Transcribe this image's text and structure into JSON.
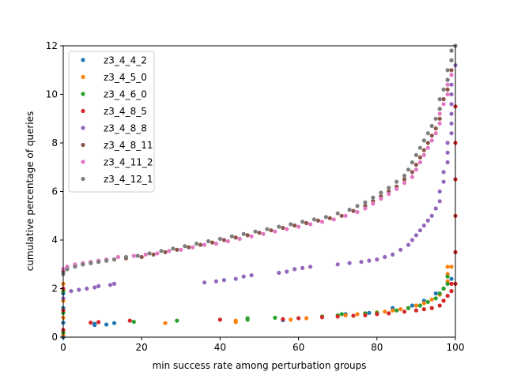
{
  "chart_data": {
    "type": "scatter",
    "xlabel": "min success rate among perturbation groups",
    "ylabel": "cumulative percentage of queries",
    "xlim": [
      0,
      100
    ],
    "ylim": [
      0,
      12
    ],
    "xticks": [
      0,
      20,
      40,
      60,
      80,
      100
    ],
    "yticks": [
      0,
      2,
      4,
      6,
      8,
      10,
      12
    ],
    "grid": false,
    "legend_position": "top-left",
    "series": [
      {
        "name": "z3_4_4_2",
        "color": "#1f77b4",
        "points": [
          [
            0,
            0.0
          ],
          [
            0,
            0.6
          ],
          [
            0,
            1.2
          ],
          [
            0,
            1.8
          ],
          [
            8,
            0.5
          ],
          [
            8,
            0.55
          ],
          [
            11,
            0.52
          ],
          [
            13,
            0.58
          ],
          [
            56,
            0.7
          ],
          [
            72,
            0.95
          ],
          [
            78,
            1.0
          ],
          [
            84,
            1.2
          ],
          [
            89,
            1.3
          ],
          [
            92,
            1.5
          ],
          [
            95,
            1.8
          ],
          [
            97,
            2.0
          ],
          [
            98,
            2.2
          ],
          [
            99,
            2.4
          ]
        ]
      },
      {
        "name": "z3_4_5_0",
        "color": "#ff7f0e",
        "points": [
          [
            0,
            0.1
          ],
          [
            0,
            0.8
          ],
          [
            0,
            1.5
          ],
          [
            0,
            2.2
          ],
          [
            26,
            0.58
          ],
          [
            44,
            0.62
          ],
          [
            44,
            0.68
          ],
          [
            58,
            0.72
          ],
          [
            62,
            0.78
          ],
          [
            72,
            0.9
          ],
          [
            75,
            0.95
          ],
          [
            77,
            0.98
          ],
          [
            80,
            1.02
          ],
          [
            82,
            1.05
          ],
          [
            84,
            1.1
          ],
          [
            86,
            1.15
          ],
          [
            88,
            1.2
          ],
          [
            90,
            1.3
          ],
          [
            92,
            1.4
          ],
          [
            94,
            1.55
          ],
          [
            96,
            1.75
          ],
          [
            97,
            2.0
          ],
          [
            98,
            2.3
          ],
          [
            98,
            2.6
          ],
          [
            98,
            2.9
          ],
          [
            99,
            2.9
          ]
        ]
      },
      {
        "name": "z3_4_6_0",
        "color": "#2ca02c",
        "points": [
          [
            0,
            0.2
          ],
          [
            0,
            1.0
          ],
          [
            0,
            1.9
          ],
          [
            18,
            0.63
          ],
          [
            29,
            0.68
          ],
          [
            47,
            0.72
          ],
          [
            47,
            0.78
          ],
          [
            54,
            0.8
          ],
          [
            66,
            0.85
          ],
          [
            70,
            0.9
          ],
          [
            71,
            0.95
          ],
          [
            77,
            0.98
          ],
          [
            80,
            1.0
          ],
          [
            85,
            1.1
          ],
          [
            88,
            1.2
          ],
          [
            91,
            1.3
          ],
          [
            93,
            1.45
          ],
          [
            95,
            1.6
          ],
          [
            96,
            1.8
          ],
          [
            97,
            2.0
          ],
          [
            98,
            2.2
          ],
          [
            98,
            2.5
          ]
        ]
      },
      {
        "name": "z3_4_8_5",
        "color": "#d62728",
        "points": [
          [
            0,
            0.3
          ],
          [
            0,
            1.1
          ],
          [
            0,
            2.0
          ],
          [
            7,
            0.6
          ],
          [
            9,
            0.62
          ],
          [
            17,
            0.68
          ],
          [
            40,
            0.72
          ],
          [
            56,
            0.74
          ],
          [
            60,
            0.78
          ],
          [
            66,
            0.82
          ],
          [
            70,
            0.85
          ],
          [
            74,
            0.88
          ],
          [
            77,
            0.9
          ],
          [
            80,
            0.95
          ],
          [
            83,
            0.98
          ],
          [
            87,
            1.05
          ],
          [
            90,
            1.1
          ],
          [
            92,
            1.15
          ],
          [
            94,
            1.2
          ],
          [
            96,
            1.3
          ],
          [
            97,
            1.5
          ],
          [
            98,
            1.7
          ],
          [
            99,
            1.9
          ],
          [
            99,
            2.2
          ],
          [
            100,
            2.2
          ],
          [
            100,
            3.5
          ],
          [
            100,
            5.0
          ],
          [
            100,
            6.5
          ],
          [
            100,
            8.0
          ],
          [
            100,
            9.5
          ]
        ]
      },
      {
        "name": "z3_4_8_8",
        "color": "#9467bd",
        "points": [
          [
            0,
            1.6
          ],
          [
            2,
            1.9
          ],
          [
            4,
            1.95
          ],
          [
            6,
            2.0
          ],
          [
            8,
            2.05
          ],
          [
            9,
            2.1
          ],
          [
            12,
            2.15
          ],
          [
            13,
            2.2
          ],
          [
            36,
            2.25
          ],
          [
            39,
            2.3
          ],
          [
            41,
            2.35
          ],
          [
            44,
            2.4
          ],
          [
            46,
            2.5
          ],
          [
            48,
            2.55
          ],
          [
            55,
            2.65
          ],
          [
            57,
            2.7
          ],
          [
            59,
            2.8
          ],
          [
            61,
            2.85
          ],
          [
            63,
            2.9
          ],
          [
            70,
            3.0
          ],
          [
            73,
            3.05
          ],
          [
            76,
            3.1
          ],
          [
            78,
            3.15
          ],
          [
            80,
            3.2
          ],
          [
            82,
            3.3
          ],
          [
            84,
            3.4
          ],
          [
            86,
            3.6
          ],
          [
            88,
            3.8
          ],
          [
            89,
            4.0
          ],
          [
            90,
            4.2
          ],
          [
            91,
            4.4
          ],
          [
            92,
            4.6
          ],
          [
            93,
            4.8
          ],
          [
            94,
            5.0
          ],
          [
            95,
            5.3
          ],
          [
            96,
            5.6
          ],
          [
            96,
            6.0
          ],
          [
            97,
            6.4
          ],
          [
            97,
            6.8
          ],
          [
            98,
            7.2
          ],
          [
            98,
            7.6
          ],
          [
            98,
            8.0
          ],
          [
            99,
            8.4
          ],
          [
            99,
            8.8
          ],
          [
            99,
            9.2
          ],
          [
            99,
            9.6
          ],
          [
            99,
            10.0
          ],
          [
            99,
            10.4
          ],
          [
            99,
            10.8
          ],
          [
            100,
            11.2
          ]
        ]
      },
      {
        "name": "z3_4_8_11",
        "color": "#8c564b",
        "points": [
          [
            0,
            2.7
          ],
          [
            1,
            2.9
          ],
          [
            3,
            2.95
          ],
          [
            5,
            3.0
          ],
          [
            7,
            3.05
          ],
          [
            9,
            3.1
          ],
          [
            11,
            3.15
          ],
          [
            13,
            3.2
          ],
          [
            16,
            3.25
          ],
          [
            20,
            3.3
          ],
          [
            23,
            3.4
          ],
          [
            26,
            3.5
          ],
          [
            29,
            3.6
          ],
          [
            32,
            3.7
          ],
          [
            35,
            3.8
          ],
          [
            38,
            3.9
          ],
          [
            41,
            4.0
          ],
          [
            44,
            4.1
          ],
          [
            47,
            4.2
          ],
          [
            50,
            4.3
          ],
          [
            53,
            4.4
          ],
          [
            56,
            4.5
          ],
          [
            59,
            4.6
          ],
          [
            62,
            4.7
          ],
          [
            65,
            4.8
          ],
          [
            68,
            4.9
          ],
          [
            71,
            5.0
          ],
          [
            74,
            5.2
          ],
          [
            77,
            5.4
          ],
          [
            79,
            5.6
          ],
          [
            81,
            5.8
          ],
          [
            83,
            6.0
          ],
          [
            85,
            6.2
          ],
          [
            87,
            6.5
          ],
          [
            89,
            6.8
          ],
          [
            90,
            7.1
          ],
          [
            91,
            7.4
          ],
          [
            92,
            7.7
          ],
          [
            93,
            8.0
          ],
          [
            94,
            8.3
          ],
          [
            95,
            8.6
          ],
          [
            96,
            9.0
          ],
          [
            96,
            9.4
          ],
          [
            97,
            9.8
          ],
          [
            98,
            10.2
          ],
          [
            98,
            10.6
          ],
          [
            99,
            11.0
          ],
          [
            99,
            11.4
          ],
          [
            99,
            11.8
          ]
        ]
      },
      {
        "name": "z3_4_11_2",
        "color": "#e377c2",
        "points": [
          [
            0,
            2.8
          ],
          [
            1,
            2.9
          ],
          [
            3,
            3.0
          ],
          [
            5,
            3.05
          ],
          [
            7,
            3.1
          ],
          [
            9,
            3.15
          ],
          [
            11,
            3.2
          ],
          [
            14,
            3.3
          ],
          [
            18,
            3.35
          ],
          [
            21,
            3.4
          ],
          [
            24,
            3.45
          ],
          [
            27,
            3.55
          ],
          [
            30,
            3.6
          ],
          [
            33,
            3.7
          ],
          [
            36,
            3.8
          ],
          [
            39,
            3.85
          ],
          [
            42,
            3.95
          ],
          [
            45,
            4.05
          ],
          [
            48,
            4.15
          ],
          [
            51,
            4.25
          ],
          [
            54,
            4.35
          ],
          [
            57,
            4.45
          ],
          [
            60,
            4.55
          ],
          [
            63,
            4.65
          ],
          [
            66,
            4.75
          ],
          [
            69,
            4.85
          ],
          [
            72,
            5.0
          ],
          [
            75,
            5.15
          ],
          [
            77,
            5.3
          ],
          [
            79,
            5.5
          ],
          [
            81,
            5.7
          ],
          [
            83,
            5.9
          ],
          [
            85,
            6.1
          ],
          [
            87,
            6.35
          ],
          [
            89,
            6.6
          ],
          [
            90,
            6.9
          ],
          [
            91,
            7.2
          ],
          [
            92,
            7.5
          ],
          [
            93,
            7.8
          ],
          [
            94,
            8.1
          ],
          [
            95,
            8.4
          ],
          [
            96,
            8.8
          ],
          [
            96,
            9.2
          ],
          [
            97,
            9.6
          ],
          [
            98,
            10.0
          ],
          [
            98,
            10.4
          ],
          [
            99,
            10.8
          ]
        ]
      },
      {
        "name": "z3_4_12_1",
        "color": "#7f7f7f",
        "points": [
          [
            0,
            2.6
          ],
          [
            1,
            2.8
          ],
          [
            3,
            2.9
          ],
          [
            5,
            3.0
          ],
          [
            7,
            3.05
          ],
          [
            9,
            3.1
          ],
          [
            11,
            3.15
          ],
          [
            13,
            3.2
          ],
          [
            16,
            3.3
          ],
          [
            19,
            3.35
          ],
          [
            22,
            3.45
          ],
          [
            25,
            3.55
          ],
          [
            28,
            3.65
          ],
          [
            31,
            3.75
          ],
          [
            34,
            3.85
          ],
          [
            37,
            3.95
          ],
          [
            40,
            4.05
          ],
          [
            43,
            4.15
          ],
          [
            46,
            4.25
          ],
          [
            49,
            4.35
          ],
          [
            52,
            4.45
          ],
          [
            55,
            4.55
          ],
          [
            58,
            4.65
          ],
          [
            61,
            4.75
          ],
          [
            64,
            4.85
          ],
          [
            67,
            4.95
          ],
          [
            70,
            5.1
          ],
          [
            73,
            5.25
          ],
          [
            75,
            5.4
          ],
          [
            77,
            5.55
          ],
          [
            79,
            5.75
          ],
          [
            81,
            5.95
          ],
          [
            83,
            6.15
          ],
          [
            85,
            6.4
          ],
          [
            87,
            6.65
          ],
          [
            88,
            6.9
          ],
          [
            89,
            7.2
          ],
          [
            90,
            7.5
          ],
          [
            91,
            7.8
          ],
          [
            92,
            8.1
          ],
          [
            93,
            8.4
          ],
          [
            94,
            8.7
          ],
          [
            95,
            9.0
          ],
          [
            96,
            9.4
          ],
          [
            96,
            9.8
          ],
          [
            97,
            10.2
          ],
          [
            98,
            10.6
          ],
          [
            98,
            11.0
          ],
          [
            99,
            11.4
          ],
          [
            99,
            11.8
          ],
          [
            100,
            12.0
          ]
        ]
      }
    ]
  }
}
